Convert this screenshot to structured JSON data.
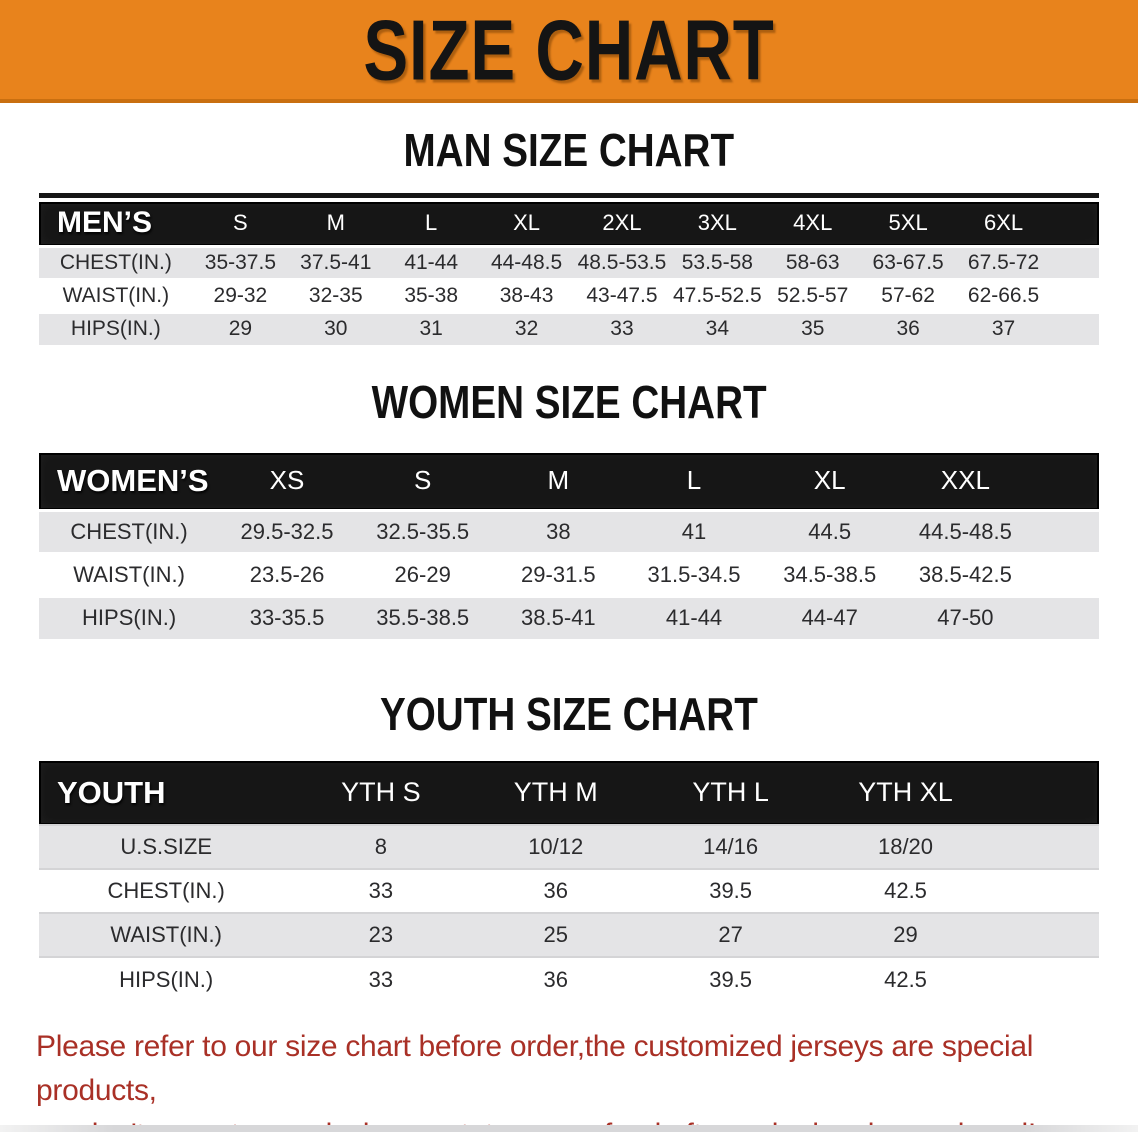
{
  "banner": {
    "title": "SIZE CHART"
  },
  "colors": {
    "banner_bg": "#E8831C",
    "banner_text": "#141414",
    "header_bar_bg": "#161616",
    "header_bar_text": "#FFFFFF",
    "row_alt_bg": "#E4E4E6",
    "row_text": "#2B2B2D",
    "disclaimer_text": "#A93026"
  },
  "sections": [
    {
      "id": "men",
      "heading": "MAN SIZE CHART",
      "corner_label": "MEN’S",
      "columns": [
        "S",
        "M",
        "L",
        "XL",
        "2XL",
        "3XL",
        "4XL",
        "5XL",
        "6XL"
      ],
      "rows": [
        {
          "label": "CHEST(IN.)",
          "values": [
            "35-37.5",
            "37.5-41",
            "41-44",
            "44-48.5",
            "48.5-53.5",
            "53.5-58",
            "58-63",
            "63-67.5",
            "67.5-72"
          ]
        },
        {
          "label": "WAIST(IN.)",
          "values": [
            "29-32",
            "32-35",
            "35-38",
            "38-43",
            "43-47.5",
            "47.5-52.5",
            "52.5-57",
            "57-62",
            "62-66.5"
          ]
        },
        {
          "label": "HIPS(IN.)",
          "values": [
            "29",
            "30",
            "31",
            "32",
            "33",
            "34",
            "35",
            "36",
            "37"
          ]
        }
      ]
    },
    {
      "id": "women",
      "heading": "WOMEN SIZE CHART",
      "corner_label": "WOMEN’S",
      "columns": [
        "XS",
        "S",
        "M",
        "L",
        "XL",
        "XXL"
      ],
      "rows": [
        {
          "label": "CHEST(IN.)",
          "values": [
            "29.5-32.5",
            "32.5-35.5",
            "38",
            "41",
            "44.5",
            "44.5-48.5"
          ]
        },
        {
          "label": "WAIST(IN.)",
          "values": [
            "23.5-26",
            "26-29",
            "29-31.5",
            "31.5-34.5",
            "34.5-38.5",
            "38.5-42.5"
          ]
        },
        {
          "label": "HIPS(IN.)",
          "values": [
            "33-35.5",
            "35.5-38.5",
            "38.5-41",
            "41-44",
            "44-47",
            "47-50"
          ]
        }
      ]
    },
    {
      "id": "youth",
      "heading": "YOUTH SIZE CHART",
      "corner_label": "YOUTH",
      "columns": [
        "YTH S",
        "YTH M",
        "YTH L",
        "YTH XL"
      ],
      "rows": [
        {
          "label": "U.S.SIZE",
          "values": [
            "8",
            "10/12",
            "14/16",
            "18/20"
          ]
        },
        {
          "label": "CHEST(IN.)",
          "values": [
            "33",
            "36",
            "39.5",
            "42.5"
          ]
        },
        {
          "label": "WAIST(IN.)",
          "values": [
            "23",
            "25",
            "27",
            "29"
          ]
        },
        {
          "label": "HIPS(IN.)",
          "values": [
            "33",
            "36",
            "39.5",
            "42.5"
          ]
        }
      ]
    }
  ],
  "disclaimer": {
    "line1": "Please refer to our size chart before order,the customized jerseys are special products,",
    "line2": "we don't accept cancel, change, teturn or refund after order has been placed!"
  }
}
